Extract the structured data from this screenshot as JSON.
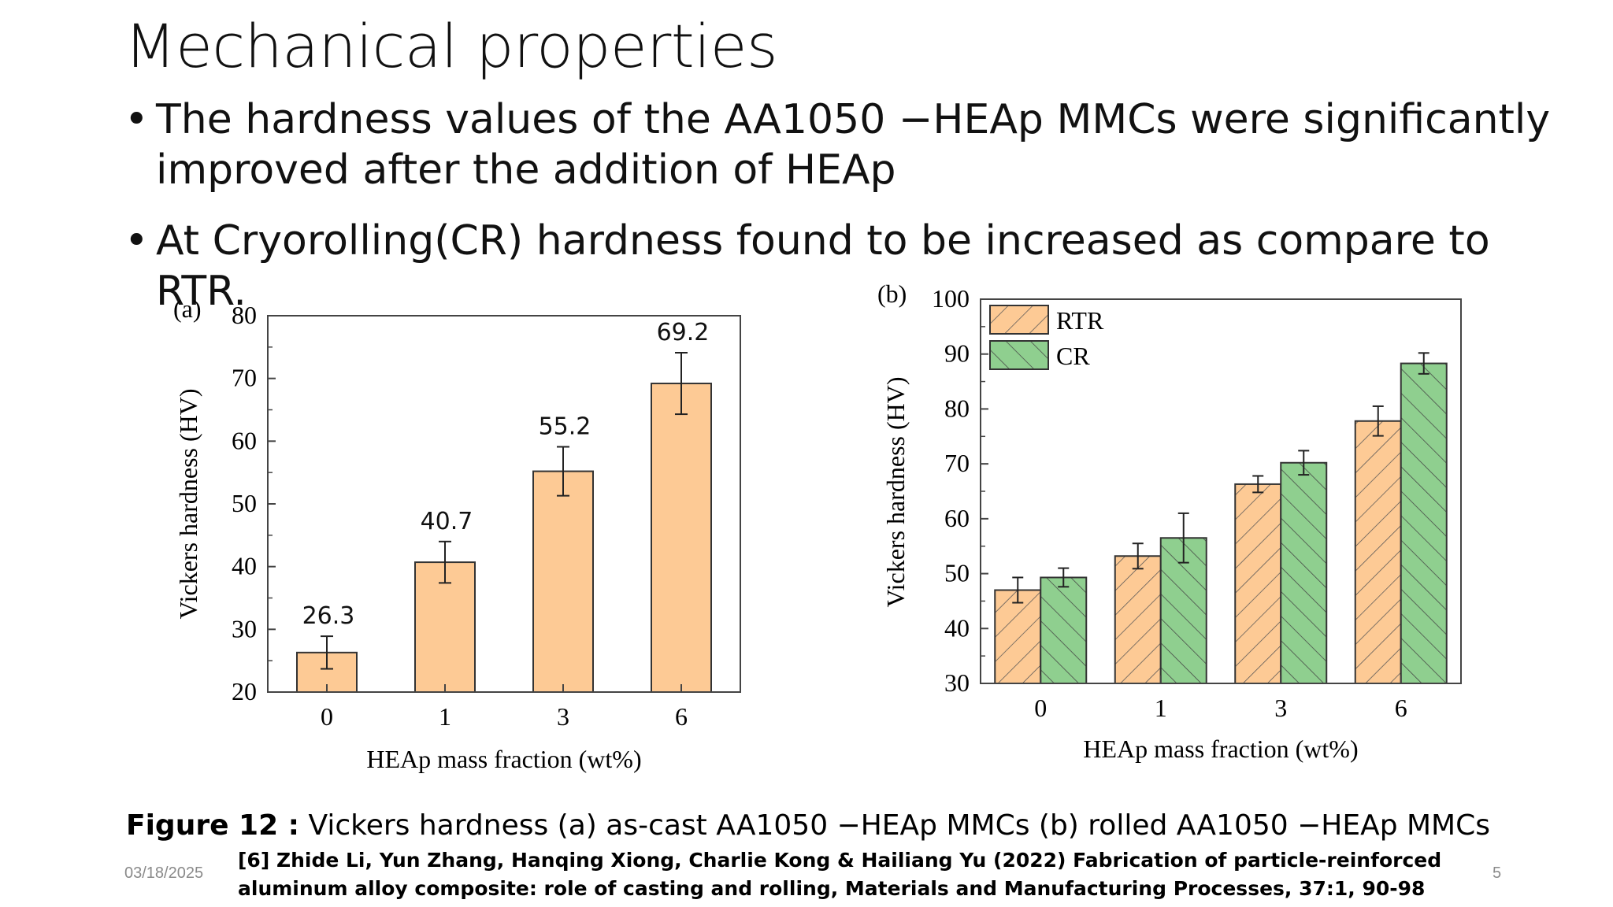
{
  "slide": {
    "title": "Mechanical properties",
    "bullets": [
      "The hardness values of the AA1050 −HEAp MMCs were significantly improved after the addition of HEAp",
      "At Cryorolling(CR) hardness found to be increased as compare to RTR."
    ],
    "caption_label": "Figure 12 :",
    "caption_text": " Vickers hardness (a) as-cast AA1050 −HEAp MMCs (b) rolled AA1050 −HEAp MMCs",
    "reference": "[6] Zhide Li, Yun Zhang, Hanqing Xiong, Charlie Kong & Hailiang Yu (2022) Fabrication of particle-reinforced aluminum alloy composite: role of casting and rolling, Materials and Manufacturing Processes, 37:1, 90-98",
    "date": "03/18/2025",
    "page": "5"
  },
  "chart_data": [
    {
      "type": "bar",
      "panel_label": "(a)",
      "categories": [
        "0",
        "1",
        "3",
        "6"
      ],
      "series": [
        {
          "values": [
            26.3,
            40.7,
            55.2,
            69.2
          ],
          "errors": [
            2.6,
            3.3,
            3.9,
            4.9
          ],
          "color": "#fdca95"
        }
      ],
      "data_labels": [
        "26.3",
        "40.7",
        "55.2",
        "69.2"
      ],
      "xlabel": "HEAp mass fraction (wt%)",
      "ylabel": "Vickers hardness (HV)",
      "ylim": [
        20,
        80
      ],
      "yticks": [
        20,
        30,
        40,
        50,
        60,
        70,
        80
      ],
      "grid": false
    },
    {
      "type": "bar",
      "panel_label": "(b)",
      "categories": [
        "0",
        "1",
        "3",
        "6"
      ],
      "series": [
        {
          "name": "RTR",
          "values": [
            47,
            53.2,
            66.3,
            77.8
          ],
          "errors": [
            2.3,
            2.3,
            1.5,
            2.7
          ],
          "color": "#fdca95",
          "hatch": "forward"
        },
        {
          "name": "CR",
          "values": [
            49.3,
            56.5,
            70.2,
            88.3
          ],
          "errors": [
            1.7,
            4.5,
            2.2,
            1.9
          ],
          "color": "#8fcf8f",
          "hatch": "backward"
        }
      ],
      "xlabel": "HEAp mass fraction (wt%)",
      "ylabel": "Vickers hardness (HV)",
      "ylim": [
        30,
        100
      ],
      "yticks": [
        30,
        40,
        50,
        60,
        70,
        80,
        90,
        100
      ],
      "legend_position": "top-left",
      "grid": false
    }
  ]
}
